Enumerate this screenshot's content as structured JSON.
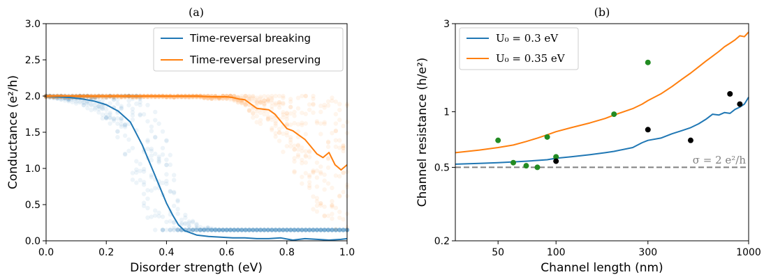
{
  "chart_data": [
    {
      "panel": "(a)",
      "type": "line",
      "title": "(a)",
      "xlabel": "Disorder strength (eV)",
      "ylabel": "Conductance (e²/h)",
      "xlim": [
        0.0,
        1.0
      ],
      "ylim": [
        0.0,
        3.0
      ],
      "xticks": [
        "0.0",
        "0.2",
        "0.4",
        "0.6",
        "0.8",
        "1.0"
      ],
      "yticks": [
        "0.0",
        "0.5",
        "1.0",
        "1.5",
        "2.0",
        "2.5",
        "3.0"
      ],
      "legend_position": "top-right",
      "series": [
        {
          "name": "Time-reversal breaking",
          "color": "#1f77b4",
          "x": [
            0.0,
            0.04,
            0.08,
            0.12,
            0.16,
            0.2,
            0.24,
            0.28,
            0.3,
            0.32,
            0.34,
            0.36,
            0.38,
            0.4,
            0.42,
            0.44,
            0.46,
            0.5,
            0.54,
            0.58,
            0.62,
            0.66,
            0.7,
            0.74,
            0.78,
            0.82,
            0.86,
            0.9,
            0.94,
            0.98,
            1.0
          ],
          "y": [
            2.0,
            1.99,
            1.98,
            1.96,
            1.93,
            1.88,
            1.79,
            1.64,
            1.48,
            1.32,
            1.12,
            0.92,
            0.72,
            0.52,
            0.36,
            0.22,
            0.14,
            0.08,
            0.06,
            0.05,
            0.04,
            0.04,
            0.03,
            0.03,
            0.04,
            0.01,
            0.03,
            0.02,
            0.01,
            0.02,
            0.03
          ]
        },
        {
          "name": "Time-reversal preserving",
          "color": "#ff7f0e",
          "x": [
            0.0,
            0.1,
            0.2,
            0.3,
            0.4,
            0.5,
            0.56,
            0.6,
            0.62,
            0.64,
            0.66,
            0.68,
            0.7,
            0.72,
            0.74,
            0.76,
            0.78,
            0.8,
            0.82,
            0.84,
            0.86,
            0.88,
            0.9,
            0.92,
            0.94,
            0.96,
            0.98,
            1.0
          ],
          "y": [
            2.0,
            2.0,
            2.0,
            2.0,
            2.0,
            2.0,
            1.99,
            1.99,
            1.98,
            1.96,
            1.95,
            1.89,
            1.83,
            1.82,
            1.81,
            1.75,
            1.65,
            1.55,
            1.52,
            1.46,
            1.4,
            1.3,
            1.2,
            1.15,
            1.22,
            1.05,
            0.98,
            1.05
          ]
        }
      ],
      "scatter_clouds": [
        {
          "series": "Time-reversal breaking",
          "color": "#1f77b4",
          "opacity": 0.08
        },
        {
          "series": "Time-reversal preserving",
          "color": "#ff7f0e",
          "opacity": 0.08
        }
      ]
    },
    {
      "panel": "(b)",
      "type": "line",
      "title": "(b)",
      "xlabel": "Channel length (nm)",
      "ylabel": "Channel resistance (h/e²)",
      "xscale": "log",
      "yscale": "log",
      "xlim": [
        30,
        1000
      ],
      "ylim": [
        0.2,
        3.0
      ],
      "xticks": [
        {
          "value": 50,
          "label": "50"
        },
        {
          "value": 100,
          "label": "100"
        },
        {
          "value": 300,
          "label": "300"
        },
        {
          "value": 1000,
          "label": "1000"
        }
      ],
      "yticks": [
        {
          "value": 0.2,
          "label": "0.2"
        },
        {
          "value": 0.5,
          "label": "0.5"
        },
        {
          "value": 1,
          "label": "1"
        },
        {
          "value": 3,
          "label": "3"
        }
      ],
      "legend_position": "top-left",
      "series": [
        {
          "name": "U₀ = 0.3 eV",
          "color": "#1f77b4",
          "x": [
            30,
            40,
            50,
            60,
            70,
            80,
            90,
            100,
            120,
            150,
            180,
            200,
            250,
            280,
            300,
            350,
            400,
            450,
            500,
            550,
            600,
            650,
            700,
            750,
            800,
            850,
            900,
            950,
            1000
          ],
          "y": [
            0.52,
            0.525,
            0.53,
            0.535,
            0.54,
            0.545,
            0.55,
            0.56,
            0.57,
            0.585,
            0.6,
            0.61,
            0.64,
            0.68,
            0.7,
            0.72,
            0.76,
            0.79,
            0.82,
            0.86,
            0.91,
            0.97,
            0.96,
            0.99,
            0.98,
            1.03,
            1.06,
            1.1,
            1.2
          ]
        },
        {
          "name": "U₀ = 0.35 eV",
          "color": "#ff7f0e",
          "x": [
            30,
            40,
            50,
            60,
            70,
            80,
            90,
            100,
            120,
            150,
            180,
            200,
            250,
            280,
            300,
            350,
            400,
            450,
            500,
            550,
            600,
            650,
            700,
            750,
            800,
            850,
            900,
            950,
            1000
          ],
          "y": [
            0.6,
            0.62,
            0.64,
            0.66,
            0.69,
            0.72,
            0.75,
            0.78,
            0.82,
            0.87,
            0.92,
            0.96,
            1.04,
            1.1,
            1.15,
            1.25,
            1.37,
            1.5,
            1.62,
            1.75,
            1.88,
            2.0,
            2.12,
            2.25,
            2.35,
            2.45,
            2.58,
            2.55,
            2.7
          ]
        }
      ],
      "points": [
        {
          "color": "#228b22",
          "x": [
            50,
            60,
            70,
            80,
            90,
            100,
            200,
            300
          ],
          "y": [
            0.7,
            0.53,
            0.51,
            0.5,
            0.73,
            0.57,
            0.97,
            1.85
          ]
        },
        {
          "color": "#000000",
          "x": [
            100,
            300,
            500,
            800,
            900
          ],
          "y": [
            0.54,
            0.8,
            0.7,
            1.25,
            1.1
          ]
        }
      ],
      "reference_line": {
        "y": 0.5,
        "color": "#808080",
        "style": "dashed",
        "label": "σ = 2 e²/h"
      }
    }
  ]
}
